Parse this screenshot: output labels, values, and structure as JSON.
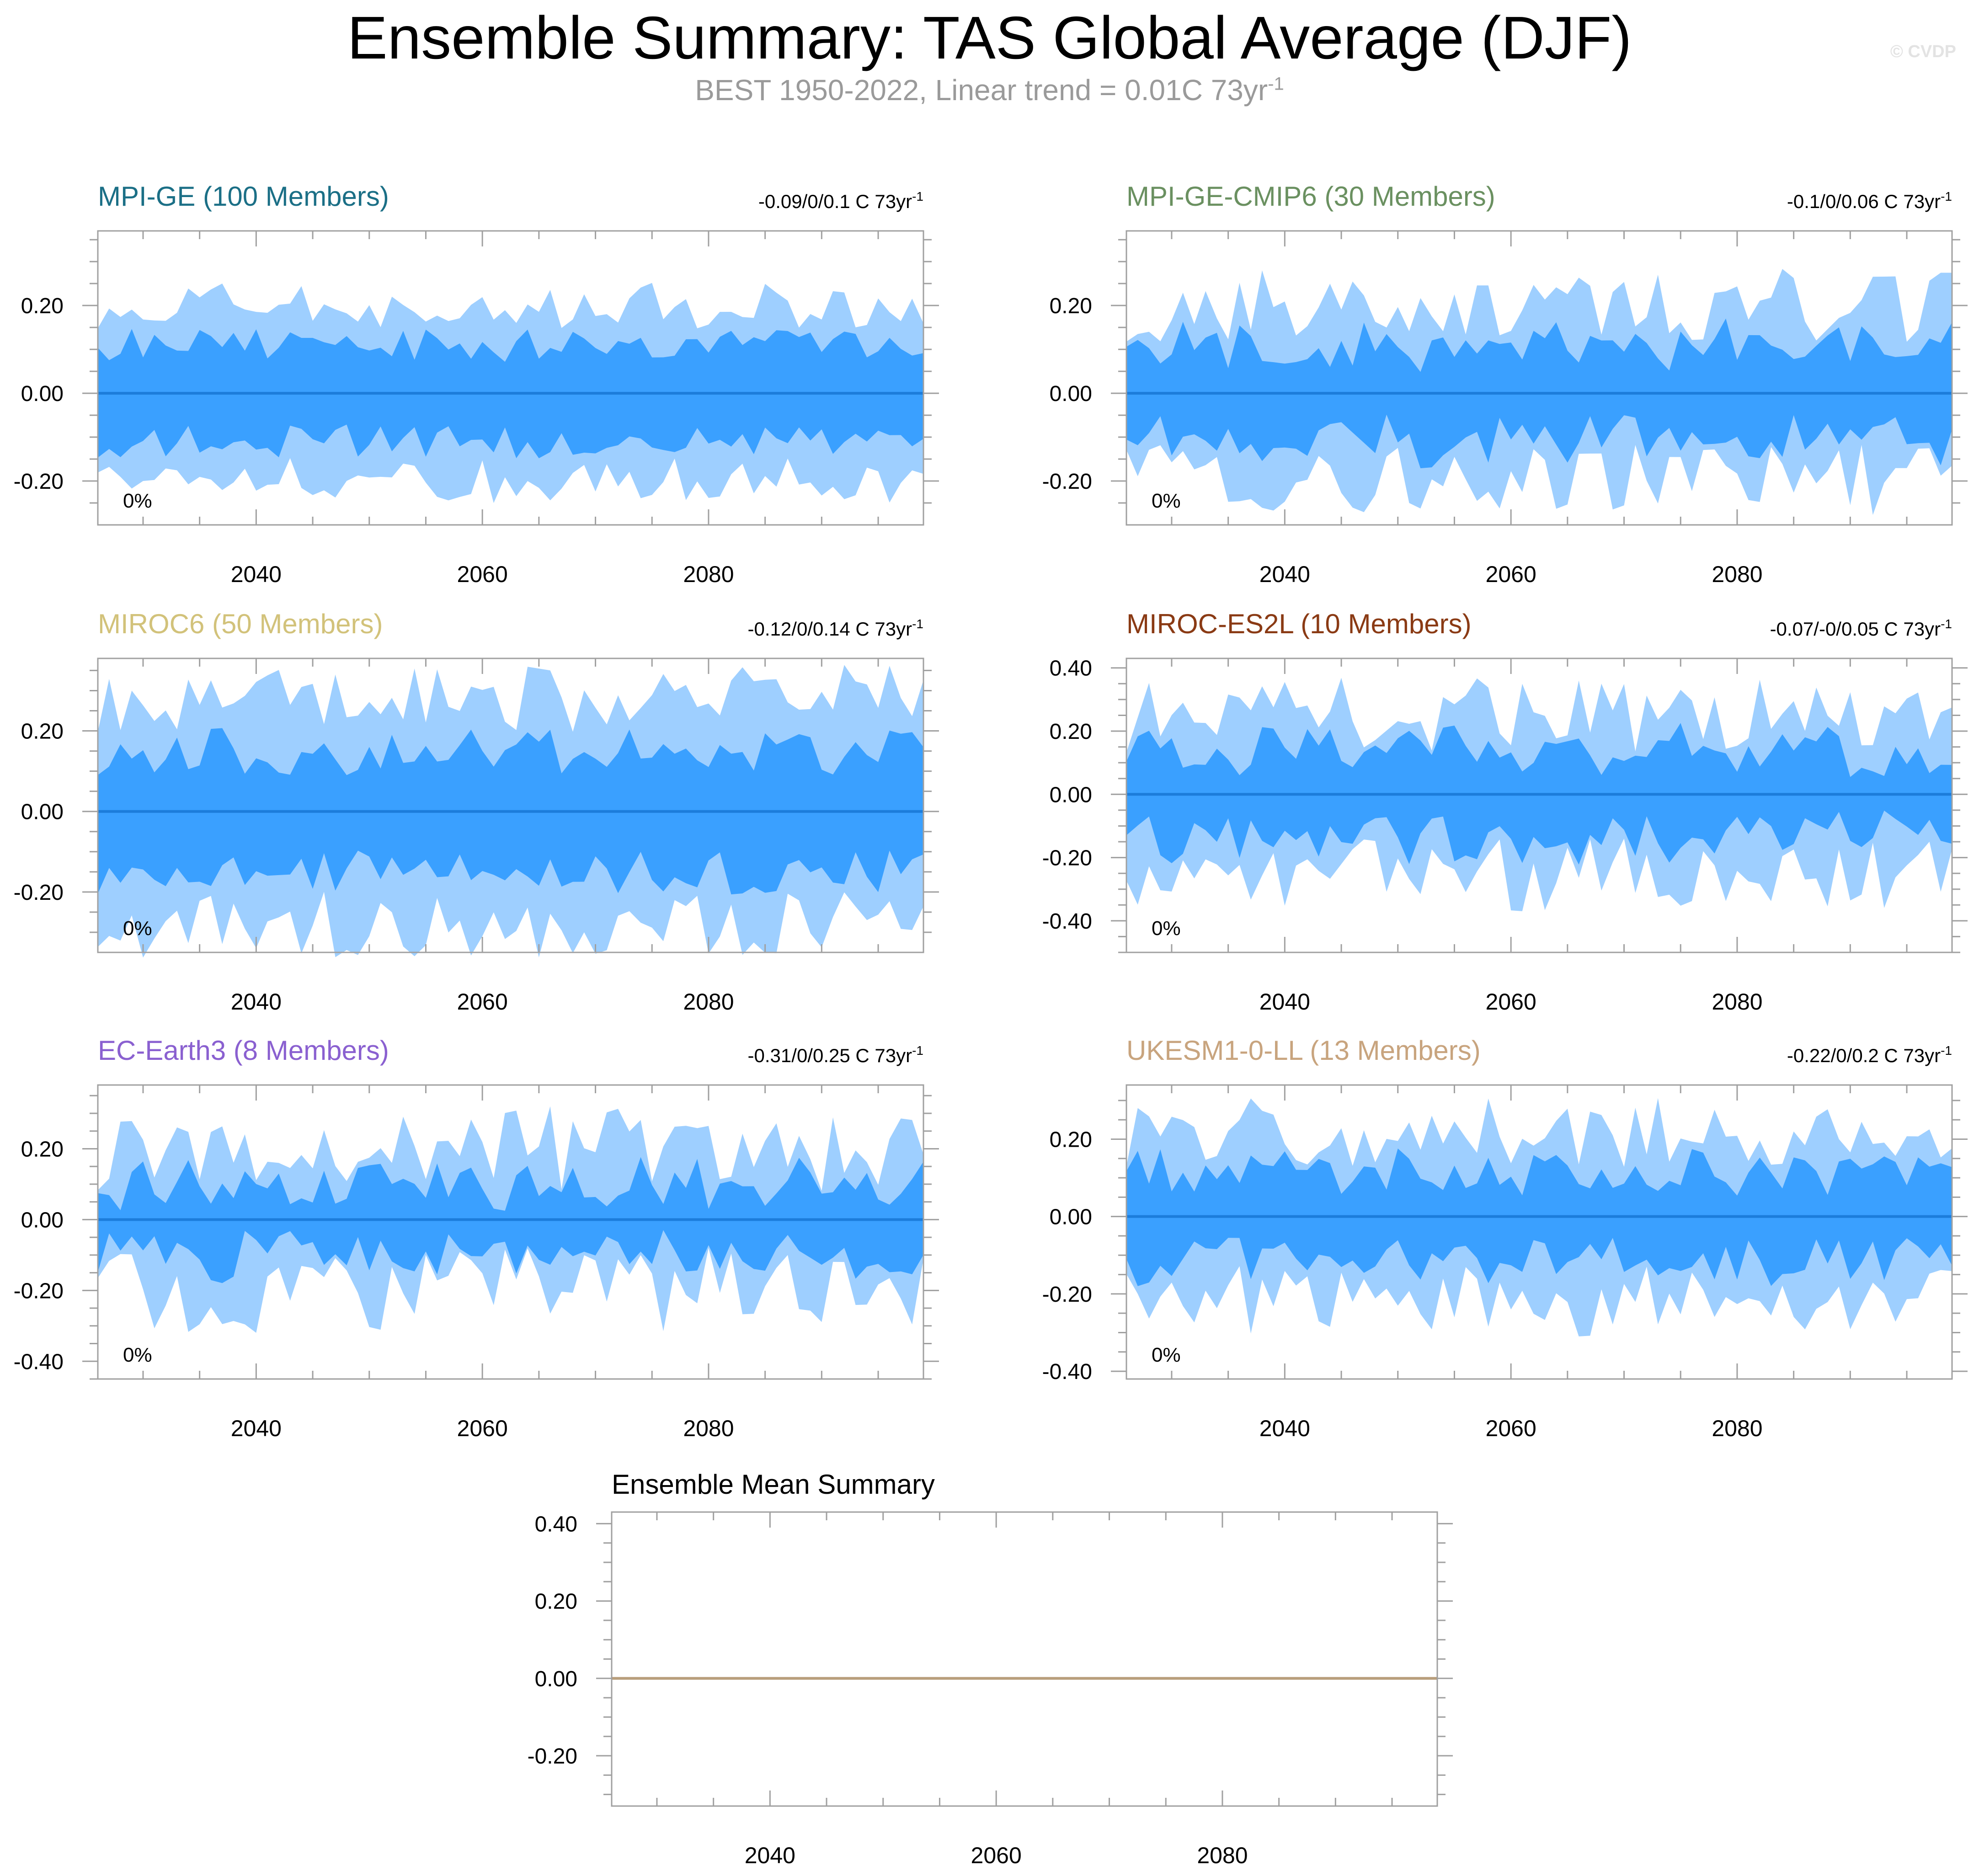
{
  "title": "Ensemble Summary: TAS Global Average (DJF)",
  "subtitle": {
    "text": "BEST 1950-2022, Linear trend = 0.01C 73yr",
    "sup": "-1"
  },
  "watermark": "© CVDP",
  "colors": {
    "outer_band": "#9ecfff",
    "inner_band": "#3aa0ff",
    "mean_line": "#1c7ddb",
    "summary_line": "#b89e7c",
    "frame": "#a0a0a0"
  },
  "chart_data": [
    {
      "type": "area",
      "title": "MPI-GE (100 Members)",
      "title_color": "#1b6f86",
      "trend_text": "-0.09/0/0.1 C 73yr",
      "trend_sup": "-1",
      "percent_label": "0%",
      "xlim": [
        2026,
        2099
      ],
      "ylim": [
        -0.3,
        0.37
      ],
      "xticks": [
        2040,
        2060,
        2080
      ],
      "yticks": [
        -0.2,
        0.0,
        0.2
      ],
      "ytick_labels": [
        "-0.20",
        "0.00",
        "0.20"
      ],
      "band_profile": {
        "outer": 0.2,
        "inner": 0.11,
        "variability": 0.22
      },
      "x": [
        2026,
        2099
      ],
      "mean": [
        0.0,
        0.0
      ]
    },
    {
      "type": "area",
      "title": "MPI-GE-CMIP6 (30 Members)",
      "title_color": "#6a9060",
      "trend_text": "-0.1/0/0.06 C 73yr",
      "trend_sup": "-1",
      "percent_label": "0%",
      "xlim": [
        2026,
        2099
      ],
      "ylim": [
        -0.3,
        0.37
      ],
      "xticks": [
        2040,
        2060,
        2080
      ],
      "yticks": [
        -0.2,
        0.0,
        0.2
      ],
      "ytick_labels": [
        "-0.20",
        "0.00",
        "0.20"
      ],
      "band_profile": {
        "outer": 0.2,
        "inner": 0.11,
        "variability": 0.35
      },
      "x": [
        2026,
        2099
      ],
      "mean": [
        0.0,
        0.0
      ]
    },
    {
      "type": "area",
      "title": "MIROC6 (50 Members)",
      "title_color": "#d2c27a",
      "trend_text": "-0.12/0/0.14 C 73yr",
      "trend_sup": "-1",
      "percent_label": "0%",
      "xlim": [
        2026,
        2099
      ],
      "ylim": [
        -0.35,
        0.38
      ],
      "xticks": [
        2040,
        2060,
        2080
      ],
      "yticks": [
        -0.2,
        0.0,
        0.2
      ],
      "ytick_labels": [
        "-0.20",
        "0.00",
        "0.20"
      ],
      "band_profile": {
        "outer": 0.28,
        "inner": 0.15,
        "variability": 0.25
      },
      "x": [
        2026,
        2099
      ],
      "mean": [
        0.0,
        0.0
      ]
    },
    {
      "type": "area",
      "title": "MIROC-ES2L (10 Members)",
      "title_color": "#8a3a14",
      "trend_text": "-0.07/-0/0.05 C 73yr",
      "trend_sup": "-1",
      "percent_label": "0%",
      "xlim": [
        2026,
        2099
      ],
      "ylim": [
        -0.5,
        0.43
      ],
      "xticks": [
        2040,
        2060,
        2080
      ],
      "yticks": [
        -0.4,
        -0.2,
        0.0,
        0.2,
        0.4
      ],
      "ytick_labels": [
        "-0.40",
        "-0.20",
        "0.00",
        "0.20",
        "0.40"
      ],
      "band_profile": {
        "outer": 0.25,
        "inner": 0.14,
        "variability": 0.4
      },
      "x": [
        2026,
        2099
      ],
      "mean": [
        0.0,
        0.0
      ]
    },
    {
      "type": "area",
      "title": "EC-Earth3 (8 Members)",
      "title_color": "#8a60d0",
      "trend_text": "-0.31/0/0.25 C 73yr",
      "trend_sup": "-1",
      "percent_label": "0%",
      "xlim": [
        2026,
        2099
      ],
      "ylim": [
        -0.45,
        0.38
      ],
      "xticks": [
        2040,
        2060,
        2080
      ],
      "yticks": [
        -0.4,
        -0.2,
        0.0,
        0.2
      ],
      "ytick_labels": [
        "-0.40",
        "-0.20",
        "0.00",
        "0.20"
      ],
      "band_profile": {
        "outer": 0.2,
        "inner": 0.1,
        "variability": 0.5
      },
      "x": [
        2026,
        2099
      ],
      "mean": [
        0.0,
        0.0
      ]
    },
    {
      "type": "area",
      "title": "UKESM1-0-LL (13 Members)",
      "title_color": "#c8a47e",
      "trend_text": "-0.22/0/0.2 C 73yr",
      "trend_sup": "-1",
      "percent_label": "0%",
      "xlim": [
        2026,
        2099
      ],
      "ylim": [
        -0.42,
        0.34
      ],
      "xticks": [
        2040,
        2060,
        2080
      ],
      "yticks": [
        -0.4,
        -0.2,
        0.0,
        0.2
      ],
      "ytick_labels": [
        "-0.40",
        "-0.20",
        "0.00",
        "0.20"
      ],
      "band_profile": {
        "outer": 0.22,
        "inner": 0.12,
        "variability": 0.35
      },
      "x": [
        2026,
        2099
      ],
      "mean": [
        0.0,
        0.0
      ]
    },
    {
      "type": "line",
      "title": "Ensemble Mean Summary",
      "title_color": "#000000",
      "xlim": [
        2026,
        2099
      ],
      "ylim": [
        -0.33,
        0.43
      ],
      "xticks": [
        2040,
        2060,
        2080
      ],
      "yticks": [
        -0.2,
        0.0,
        0.2,
        0.4
      ],
      "ytick_labels": [
        "-0.20",
        "0.00",
        "0.20",
        "0.40"
      ],
      "x": [
        2026,
        2099
      ],
      "mean": [
        0.0,
        0.0
      ]
    }
  ]
}
